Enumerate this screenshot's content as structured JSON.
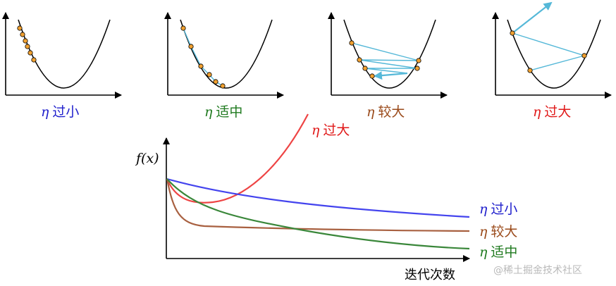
{
  "colors": {
    "small": "#3333dd",
    "right": "#2e7d2e",
    "large": "#a0522d",
    "huge": "#ee3333",
    "step": "#55b8d8",
    "point": "#f0a030",
    "axis": "#000000"
  },
  "panels": [
    {
      "eta": "η",
      "label": "过小",
      "color": "#2020cc"
    },
    {
      "eta": "η",
      "label": "适中",
      "color": "#1f7a1f"
    },
    {
      "eta": "η",
      "label": "较大",
      "color": "#9a4a1a"
    },
    {
      "eta": "η",
      "label": "过大",
      "color": "#e01818"
    }
  ],
  "main_chart": {
    "ylabel": "f(x)",
    "xlabel": "迭代次数",
    "curve_labels": [
      {
        "eta": "η",
        "label": "过大",
        "color": "#e01818"
      },
      {
        "eta": "η",
        "label": "过小",
        "color": "#2020cc"
      },
      {
        "eta": "η",
        "label": "较大",
        "color": "#9a4a1a"
      },
      {
        "eta": "η",
        "label": "适中",
        "color": "#1f7a1f"
      }
    ]
  },
  "watermark": "@稀土掘金技术社区"
}
